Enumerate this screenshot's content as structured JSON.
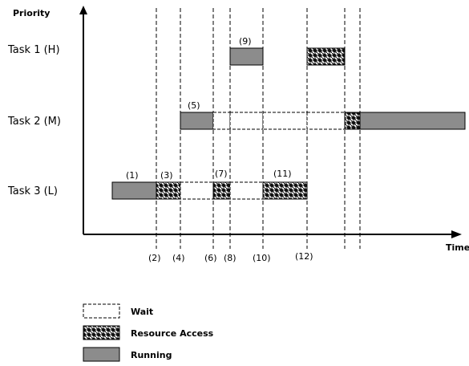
{
  "axes": {
    "y_title": "Priority",
    "x_title": "Time"
  },
  "tasks": [
    {
      "label": "Task 1 (H)"
    },
    {
      "label": "Task 2 (M)"
    },
    {
      "label": "Task 3 (L)"
    }
  ],
  "markers": [
    "(1)",
    "(3)",
    "(5)",
    "(7)",
    "(9)",
    "(11)"
  ],
  "ticks": [
    "(2)",
    "(4)",
    "(6)",
    "(8)",
    "(10)",
    "(12)"
  ],
  "legend": {
    "wait": "Wait",
    "resource": "Resource Access",
    "running": "Running"
  },
  "colors": {
    "running": "#8c8c8c",
    "wait": "#ffffff",
    "resource": "#1a1a1a",
    "line": "#000000"
  }
}
